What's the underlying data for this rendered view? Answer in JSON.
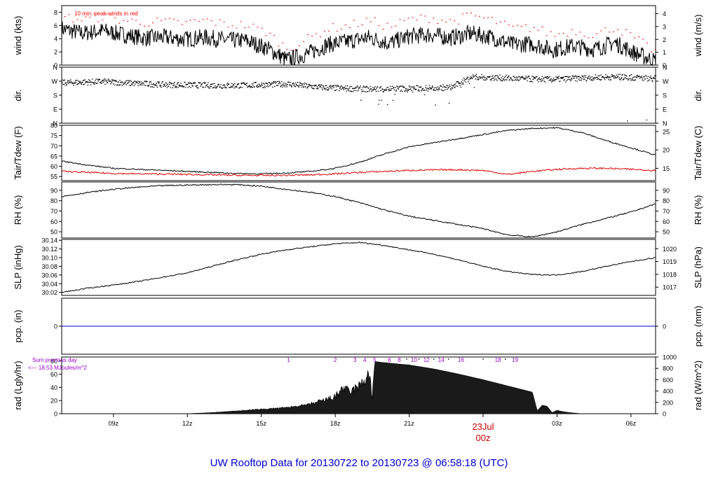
{
  "title": "UW Rooftop Data for 20130722  to  20130723 @ 06:58:18  (UTC)",
  "colors": {
    "primary": "#000000",
    "wind_peaks": "#ff0000",
    "dewpoint": "#dd0000",
    "precip": "#0000cc",
    "title": "#0000cc",
    "date_marker": "#cc0000",
    "rad_notes": "#9900cc"
  },
  "time_axis": {
    "tick_labels": [
      "09z",
      "12z",
      "15z",
      "18z",
      "21z",
      "00z",
      "03z",
      "06z"
    ],
    "tick_hours": [
      9,
      12,
      15,
      18,
      21,
      24,
      27,
      30
    ],
    "date_label": "23Jul",
    "date_label_hour": 24,
    "range_hours": [
      6.9,
      31.0
    ]
  },
  "chart_data": [
    {
      "id": "wind",
      "type": "line",
      "left_label": "wind (kts)",
      "right_label": "wind (m/s)",
      "left_ticks": [
        "0",
        "2",
        "4",
        "6",
        "8"
      ],
      "right_ticks": [
        "0",
        "1",
        "2",
        "3",
        "4"
      ],
      "ylim": [
        0,
        9
      ],
      "annotation": "10 min. peak winds in red",
      "series": [
        {
          "values_kts": [
            5.5,
            4.8,
            5.2,
            4.6,
            4.1,
            4.2,
            3.9,
            4.2,
            3.8,
            3.7,
            2.6,
            0.8,
            1.7,
            3.1,
            3.6,
            4.2,
            3.3,
            4.4,
            4.6,
            4.1,
            4.8,
            4.2,
            3.1,
            3.2,
            2.3,
            2.9,
            2.4,
            3.4,
            1.8,
            0.6
          ]
        },
        {
          "peaks_kts": [
            7.3,
            6.9,
            7.4,
            6.8,
            6.5,
            6.6,
            6.4,
            6.8,
            6.2,
            6.1,
            5.0,
            2.5,
            4.0,
            5.6,
            6.0,
            6.8,
            5.8,
            7.0,
            7.2,
            6.6,
            7.6,
            6.8,
            5.6,
            5.7,
            4.6,
            5.3,
            4.6,
            5.8,
            4.0,
            2.0
          ]
        }
      ]
    },
    {
      "id": "dir",
      "type": "scatter",
      "left_label": "dir.",
      "right_label": "dir.",
      "left_ticks": [
        "N",
        "E",
        "S",
        "W",
        "N"
      ],
      "right_ticks": [
        "N",
        "E",
        "S",
        "W",
        "N"
      ],
      "ylim": [
        0,
        360
      ],
      "values_deg": [
        262,
        266,
        270,
        262,
        256,
        250,
        248,
        246,
        244,
        246,
        250,
        255,
        240,
        230,
        225,
        222,
        224,
        226,
        228,
        232,
        300,
        296,
        290,
        286,
        284,
        290,
        296,
        300,
        295,
        290
      ]
    },
    {
      "id": "temp",
      "type": "line",
      "left_label": "Tair/Tdew (F)",
      "right_label": "Tair/Tdew (C)",
      "left_ticks": [
        "55",
        "60",
        "65",
        "70",
        "75",
        "80"
      ],
      "right_ticks": [
        "15",
        "20",
        "25"
      ],
      "ylim": [
        53,
        80
      ],
      "series": [
        {
          "name": "Tair",
          "x_hours": [
            6.9,
            8,
            9,
            10,
            11,
            12,
            13,
            14,
            15,
            16,
            17,
            18,
            19,
            20,
            21,
            22,
            23,
            24,
            25,
            26,
            27,
            28,
            29,
            30,
            31
          ],
          "values": [
            62.5,
            60.5,
            59.0,
            58.5,
            58.0,
            57.5,
            57.0,
            56.5,
            56.3,
            56.7,
            57.5,
            59.0,
            62.0,
            66.0,
            69.5,
            71.5,
            73.5,
            75.5,
            77.5,
            78.5,
            78.8,
            76.5,
            72.5,
            69.0,
            65.5
          ]
        },
        {
          "name": "Tdew",
          "x_hours": [
            6.9,
            8,
            9,
            10,
            11,
            12,
            13,
            14,
            15,
            16,
            17,
            18,
            19,
            20,
            21,
            22,
            23,
            24,
            25,
            26,
            27,
            28,
            29,
            30,
            31
          ],
          "values": [
            57.5,
            57.0,
            56.5,
            56.3,
            56.2,
            56.0,
            55.8,
            55.6,
            55.5,
            55.6,
            55.8,
            56.3,
            57.0,
            57.5,
            58.0,
            58.2,
            58.3,
            58.0,
            56.0,
            57.5,
            58.5,
            59.0,
            59.0,
            58.5,
            58.0
          ]
        }
      ]
    },
    {
      "id": "rh",
      "type": "line",
      "left_label": "RH (%)",
      "right_label": "RH (%)",
      "left_ticks": [
        "50",
        "60",
        "70",
        "80",
        "90"
      ],
      "right_ticks": [
        "50",
        "60",
        "70",
        "80",
        "90"
      ],
      "ylim": [
        44,
        98
      ],
      "x_hours": [
        6.9,
        8,
        9,
        10,
        11,
        12,
        13,
        14,
        15,
        16,
        17,
        18,
        19,
        20,
        21,
        22,
        23,
        24,
        25,
        26,
        27,
        28,
        29,
        30,
        31
      ],
      "values": [
        84,
        88,
        91,
        93,
        94.5,
        95,
        95.5,
        95.5,
        94,
        91,
        88,
        84,
        78,
        71,
        65,
        61,
        57,
        53,
        47,
        45,
        50,
        57,
        63,
        69,
        77
      ]
    },
    {
      "id": "slp",
      "type": "line",
      "left_label": "SLP (inHg)",
      "right_label": "SLP (hPa)",
      "left_ticks": [
        "30.02",
        "30.04",
        "30.06",
        "30.08",
        "30.10",
        "30.12",
        "30.14"
      ],
      "right_ticks": [
        "1017",
        "1018",
        "1019",
        "1020"
      ],
      "ylim": [
        30.013,
        30.142
      ],
      "x_hours": [
        6.9,
        8,
        9,
        10,
        11,
        12,
        13,
        14,
        15,
        16,
        17,
        18,
        19,
        20,
        21,
        22,
        23,
        24,
        25,
        26,
        27,
        28,
        29,
        30,
        31
      ],
      "values": [
        30.02,
        30.03,
        30.037,
        30.045,
        30.055,
        30.065,
        30.08,
        30.095,
        30.108,
        30.118,
        30.125,
        30.132,
        30.135,
        30.128,
        30.118,
        30.108,
        30.095,
        30.08,
        30.068,
        30.061,
        30.06,
        30.068,
        30.08,
        30.091,
        30.1
      ]
    },
    {
      "id": "pcp",
      "type": "line",
      "left_label": "pcp. (in)",
      "right_label": "pcp. (mm)",
      "left_ticks": [
        "0"
      ],
      "right_ticks": [
        "0"
      ],
      "ylim": [
        -1,
        1
      ],
      "value": 0
    },
    {
      "id": "rad",
      "type": "area",
      "left_label": "rad (Lgly/hr)",
      "right_label": "rad (W/m^2)",
      "left_ticks": [
        "0",
        "20",
        "40",
        "60",
        "80"
      ],
      "right_ticks": [
        "0",
        "200",
        "400",
        "600",
        "800",
        "1000"
      ],
      "ylim": [
        0,
        1000
      ],
      "x_hours": [
        6.9,
        12,
        13,
        14,
        15,
        16,
        17,
        17.5,
        18,
        18.3,
        18.6,
        19,
        19.2,
        19.4,
        19.5,
        19.6,
        20,
        21,
        22,
        23,
        24,
        25,
        26,
        26.2,
        26.4,
        26.6,
        26.8,
        27,
        27.2,
        27.5,
        28,
        31
      ],
      "values": [
        0,
        0,
        20,
        50,
        80,
        110,
        170,
        230,
        300,
        460,
        380,
        500,
        600,
        720,
        220,
        920,
        900,
        860,
        790,
        700,
        600,
        490,
        380,
        50,
        150,
        130,
        20,
        60,
        40,
        20,
        0,
        0
      ],
      "upper_labels": [
        "1",
        "2",
        "3",
        "4",
        "5",
        "6",
        "8",
        "10",
        "12",
        "14",
        "16",
        "18",
        "19"
      ],
      "upper_label_hours": [
        16.1,
        18.0,
        18.8,
        19.2,
        19.6,
        20.2,
        20.6,
        21.2,
        21.7,
        22.3,
        23.1,
        24.6,
        25.3
      ],
      "note_line1": "Sum previous day",
      "note_line2": "<--- 18.53 MJoules/m^2"
    }
  ]
}
